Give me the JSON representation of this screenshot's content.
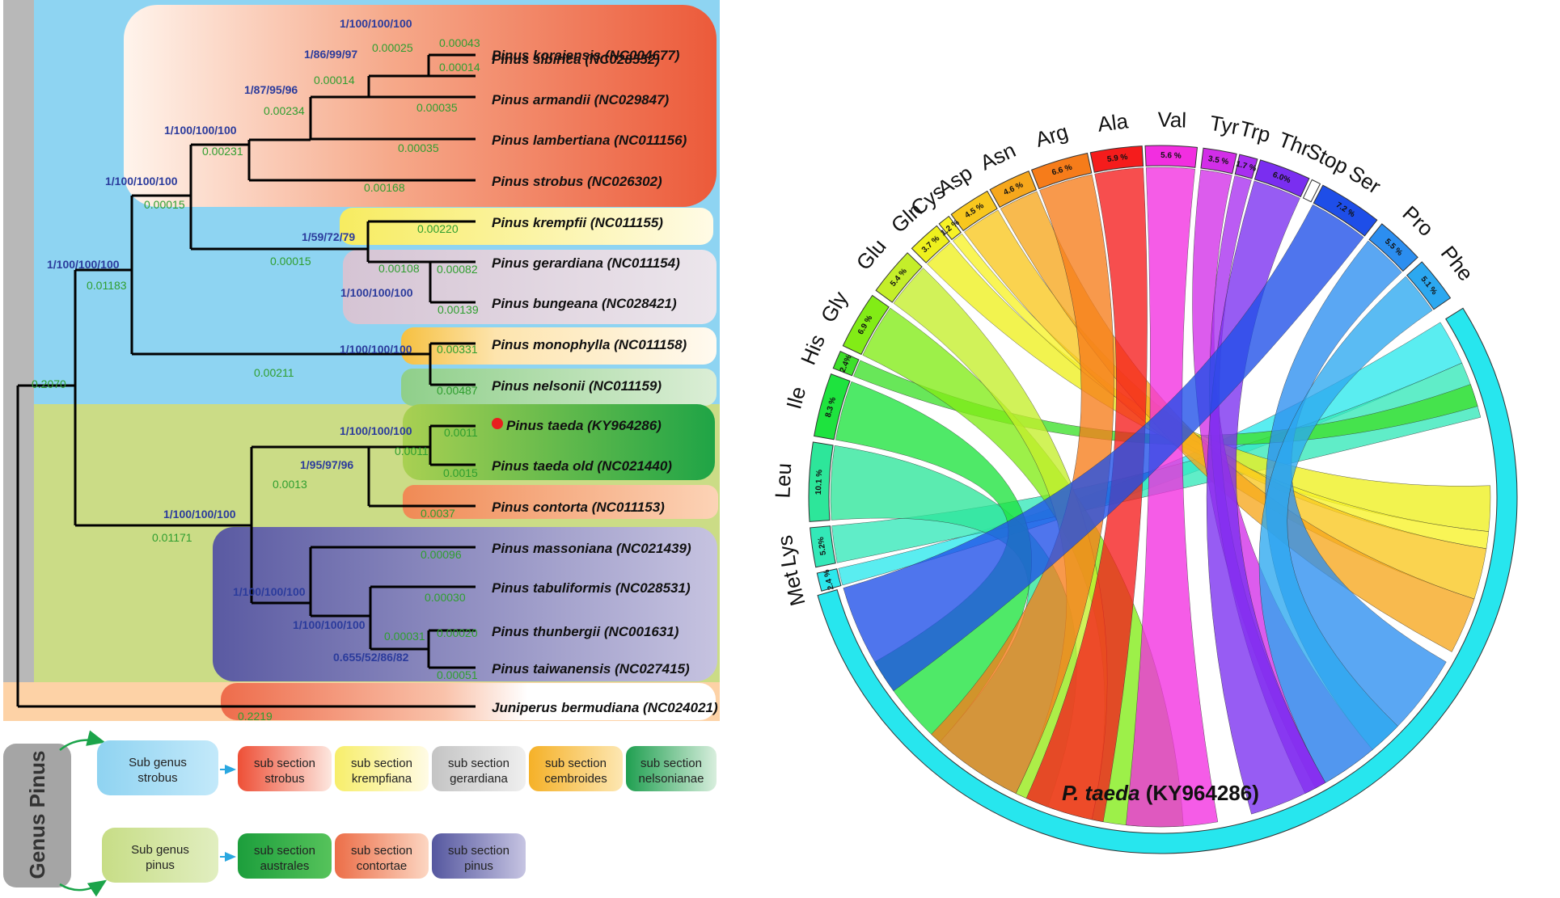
{
  "tree": {
    "taxa": [
      {
        "name": "Pinus koraiensis (NC004677)"
      },
      {
        "name": "Pinus sibirica (NC028552)"
      },
      {
        "name": "Pinus armandii (NC029847)"
      },
      {
        "name": "Pinus lambertiana (NC011156)"
      },
      {
        "name": "Pinus strobus (NC026302)"
      },
      {
        "name": "Pinus krempfii (NC011155)"
      },
      {
        "name": "Pinus gerardiana (NC011154)"
      },
      {
        "name": "Pinus bungeana (NC028421)"
      },
      {
        "name": "Pinus monophylla (NC011158)"
      },
      {
        "name": "Pinus nelsonii (NC011159)"
      },
      {
        "name": "Pinus taeda (KY964286)"
      },
      {
        "name": "Pinus taeda old (NC021440)"
      },
      {
        "name": "Pinus contorta (NC011153)"
      },
      {
        "name": "Pinus massoniana (NC021439)"
      },
      {
        "name": "Pinus tabuliformis (NC028531)"
      },
      {
        "name": "Pinus thunbergii (NC001631)"
      },
      {
        "name": "Pinus taiwanensis (NC027415)"
      },
      {
        "name": "Juniperus bermudiana (NC024021)"
      }
    ],
    "support": [
      "1/100/100/100",
      "1/86/99/97",
      "1/87/95/96",
      "1/100/100/100",
      "1/100/100/100",
      "1/59/72/79",
      "1/100/100/100",
      "1/100/100/100",
      "1/100/100/100",
      "1/100/100/100",
      "1/95/97/96",
      "1/100/100/100",
      "1/100/100/100",
      "1/100/100/100",
      "0.655/52/86/82"
    ],
    "branch_lengths": [
      "0.00043",
      "0.00025",
      "0.00014",
      "0.00014",
      "0.00035",
      "0.00234",
      "0.00035",
      "0.00231",
      "0.00168",
      "0.00015",
      "0.00220",
      "0.00015",
      "0.00108",
      "0.00082",
      "0.00139",
      "0.01183",
      "0.00331",
      "0.00211",
      "0.00487",
      "0.2070",
      "0.0011",
      "0.0011",
      "0.0015",
      "0.0013",
      "0.0037",
      "0.01171",
      "0.00096",
      "0.00030",
      "0.00020",
      "0.00031",
      "0.00051",
      "0.2219"
    ]
  },
  "legend": {
    "genus": "Genus Pinus",
    "subgenus_strobus": [
      "Sub genus",
      "strobus"
    ],
    "subgenus_pinus": [
      "Sub genus",
      "pinus"
    ],
    "sections_strobus": [
      {
        "l1": "sub section",
        "l2": "strobus",
        "color": "#ef5a3c"
      },
      {
        "l1": "sub section",
        "l2": "krempfiana",
        "color": "#f5ec6a"
      },
      {
        "l1": "sub section",
        "l2": "gerardiana",
        "color": "#c9c9c9"
      },
      {
        "l1": "sub section",
        "l2": "cembroides",
        "color": "#f5b831"
      },
      {
        "l1": "sub section",
        "l2": "nelsonianae",
        "color": "#26a65b"
      }
    ],
    "sections_pinus": [
      {
        "l1": "sub section",
        "l2": "australes",
        "color": "#22a640"
      },
      {
        "l1": "sub section",
        "l2": "contortae",
        "color": "#ec7a55"
      },
      {
        "l1": "sub section",
        "l2": "pinus",
        "color": "#5b5ba5"
      }
    ]
  },
  "chord": {
    "title_italic": "P. taeda",
    "title_rest": " (KY964286)",
    "amino_acids": [
      {
        "name": "Met",
        "pct": "2.4 %",
        "color": "#2ce8ec"
      },
      {
        "name": "Lys",
        "pct": "5.2%",
        "color": "#33e8b8"
      },
      {
        "name": "Leu",
        "pct": "10.1 %",
        "color": "#2de69a"
      },
      {
        "name": "Ile",
        "pct": "8.3 %",
        "color": "#1ee33e"
      },
      {
        "name": "His",
        "pct": "2.4%",
        "color": "#3ee02a"
      },
      {
        "name": "Gly",
        "pct": "6.9 %",
        "color": "#82ec16"
      },
      {
        "name": "Glu",
        "pct": "5.4 %",
        "color": "#c4ee2a"
      },
      {
        "name": "Gln",
        "pct": "3.7 %",
        "color": "#eef01e"
      },
      {
        "name": "Cys",
        "pct": "1.2 %",
        "color": "#f7f226"
      },
      {
        "name": "Asp",
        "pct": "4.5 %",
        "color": "#f8c71e"
      },
      {
        "name": "Asn",
        "pct": "4.6 %",
        "color": "#f6a71c"
      },
      {
        "name": "Arg",
        "pct": "6.6 %",
        "color": "#f67c1a"
      },
      {
        "name": "Ala",
        "pct": "5.9 %",
        "color": "#f51c1c"
      },
      {
        "name": "Val",
        "pct": "5.6 %",
        "color": "#f22ee0"
      },
      {
        "name": "Tyr",
        "pct": "3.5 %",
        "color": "#d22ee8"
      },
      {
        "name": "Trp",
        "pct": "1.7 %",
        "color": "#a82ef0"
      },
      {
        "name": "Thr",
        "pct": "6.0%",
        "color": "#7a2ef0"
      },
      {
        "name": "Stop",
        "pct": "",
        "color": "#ffffff"
      },
      {
        "name": "Ser",
        "pct": "7.2 %",
        "color": "#1e4ee8"
      },
      {
        "name": "Pro",
        "pct": "5.5 %",
        "color": "#2c8ef0"
      },
      {
        "name": "Phe",
        "pct": "5.1 %",
        "color": "#2ca8f0"
      }
    ]
  }
}
